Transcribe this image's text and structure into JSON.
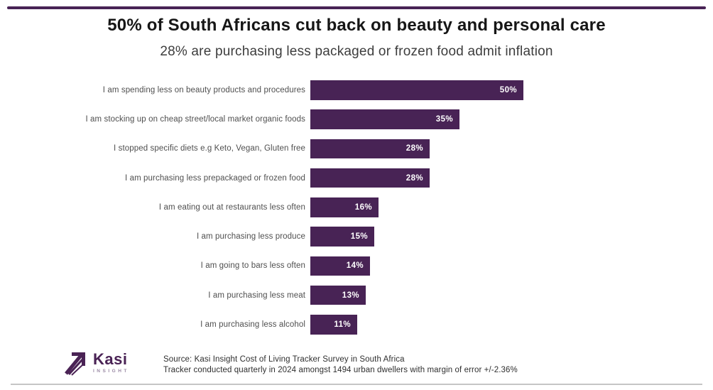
{
  "chart_data": {
    "type": "bar",
    "orientation": "horizontal",
    "title": "50% of South Africans cut back on beauty and personal care",
    "subtitle": "28% are purchasing less packaged or frozen food admit inflation",
    "categories": [
      "I am spending less on beauty products and procedures",
      "I am stocking up on cheap street/local market organic foods",
      "I stopped specific diets e.g Keto, Vegan, Gluten free",
      "I am purchasing less prepackaged or frozen food",
      "I am eating out at restaurants less often",
      "I am purchasing less produce",
      "I am going to bars less often",
      "I am purchasing less meat",
      "I am purchasing less alcohol"
    ],
    "values": [
      50,
      35,
      28,
      28,
      16,
      15,
      14,
      13,
      11
    ],
    "value_labels": [
      "50%",
      "35%",
      "28%",
      "28%",
      "16%",
      "15%",
      "14%",
      "13%",
      "11%"
    ],
    "xlim": [
      0,
      50
    ],
    "grid": false,
    "legend": false,
    "bar_color": "#482355",
    "value_label_color": "#ffffff"
  },
  "footer": {
    "logo": {
      "name": "Kasi",
      "sub": "INSIGHT"
    },
    "source_line1": "Source: Kasi Insight Cost of Living Tracker Survey in South Africa",
    "source_line2": "Tracker conducted quarterly in 2024 amongst 1494 urban dwellers with margin of error +/-2.36%"
  },
  "colors": {
    "accent": "#482355",
    "title_text": "#161616",
    "label_text": "#4f4f4f",
    "rule_gray": "#c5c5c5"
  }
}
